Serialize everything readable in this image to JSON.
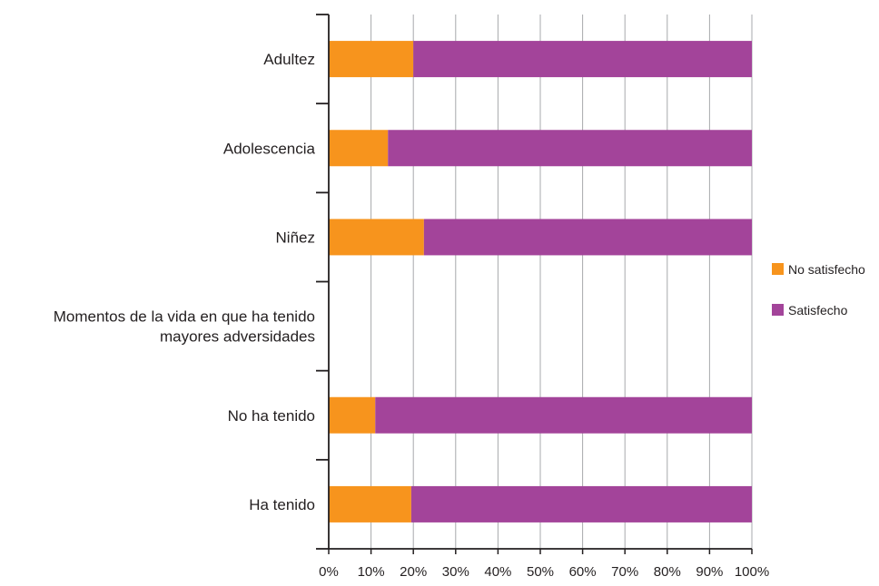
{
  "chart_data": {
    "type": "bar",
    "orientation": "horizontal",
    "stacked": true,
    "percent_stacked": true,
    "categories": [
      "Adultez",
      "Adolescencia",
      "Niñez",
      [
        "Momentos de la vida en que ha tenido",
        "mayores adversidades"
      ],
      "No ha tenido",
      "Ha tenido"
    ],
    "series": [
      {
        "name": "No satisfecho",
        "values": [
          20,
          14,
          22.5,
          null,
          11,
          19.5
        ],
        "color": "#f7941d"
      },
      {
        "name": "Satisfecho",
        "values": [
          80,
          86,
          77.5,
          null,
          89,
          80.5
        ],
        "color": "#a3449a"
      }
    ],
    "x_ticks": [
      "0%",
      "10%",
      "20%",
      "30%",
      "40%",
      "50%",
      "60%",
      "70%",
      "80%",
      "90%",
      "100%"
    ],
    "xlim": [
      0,
      100
    ],
    "grid": true,
    "legend_position": "right",
    "title": "",
    "xlabel": "",
    "ylabel": ""
  }
}
